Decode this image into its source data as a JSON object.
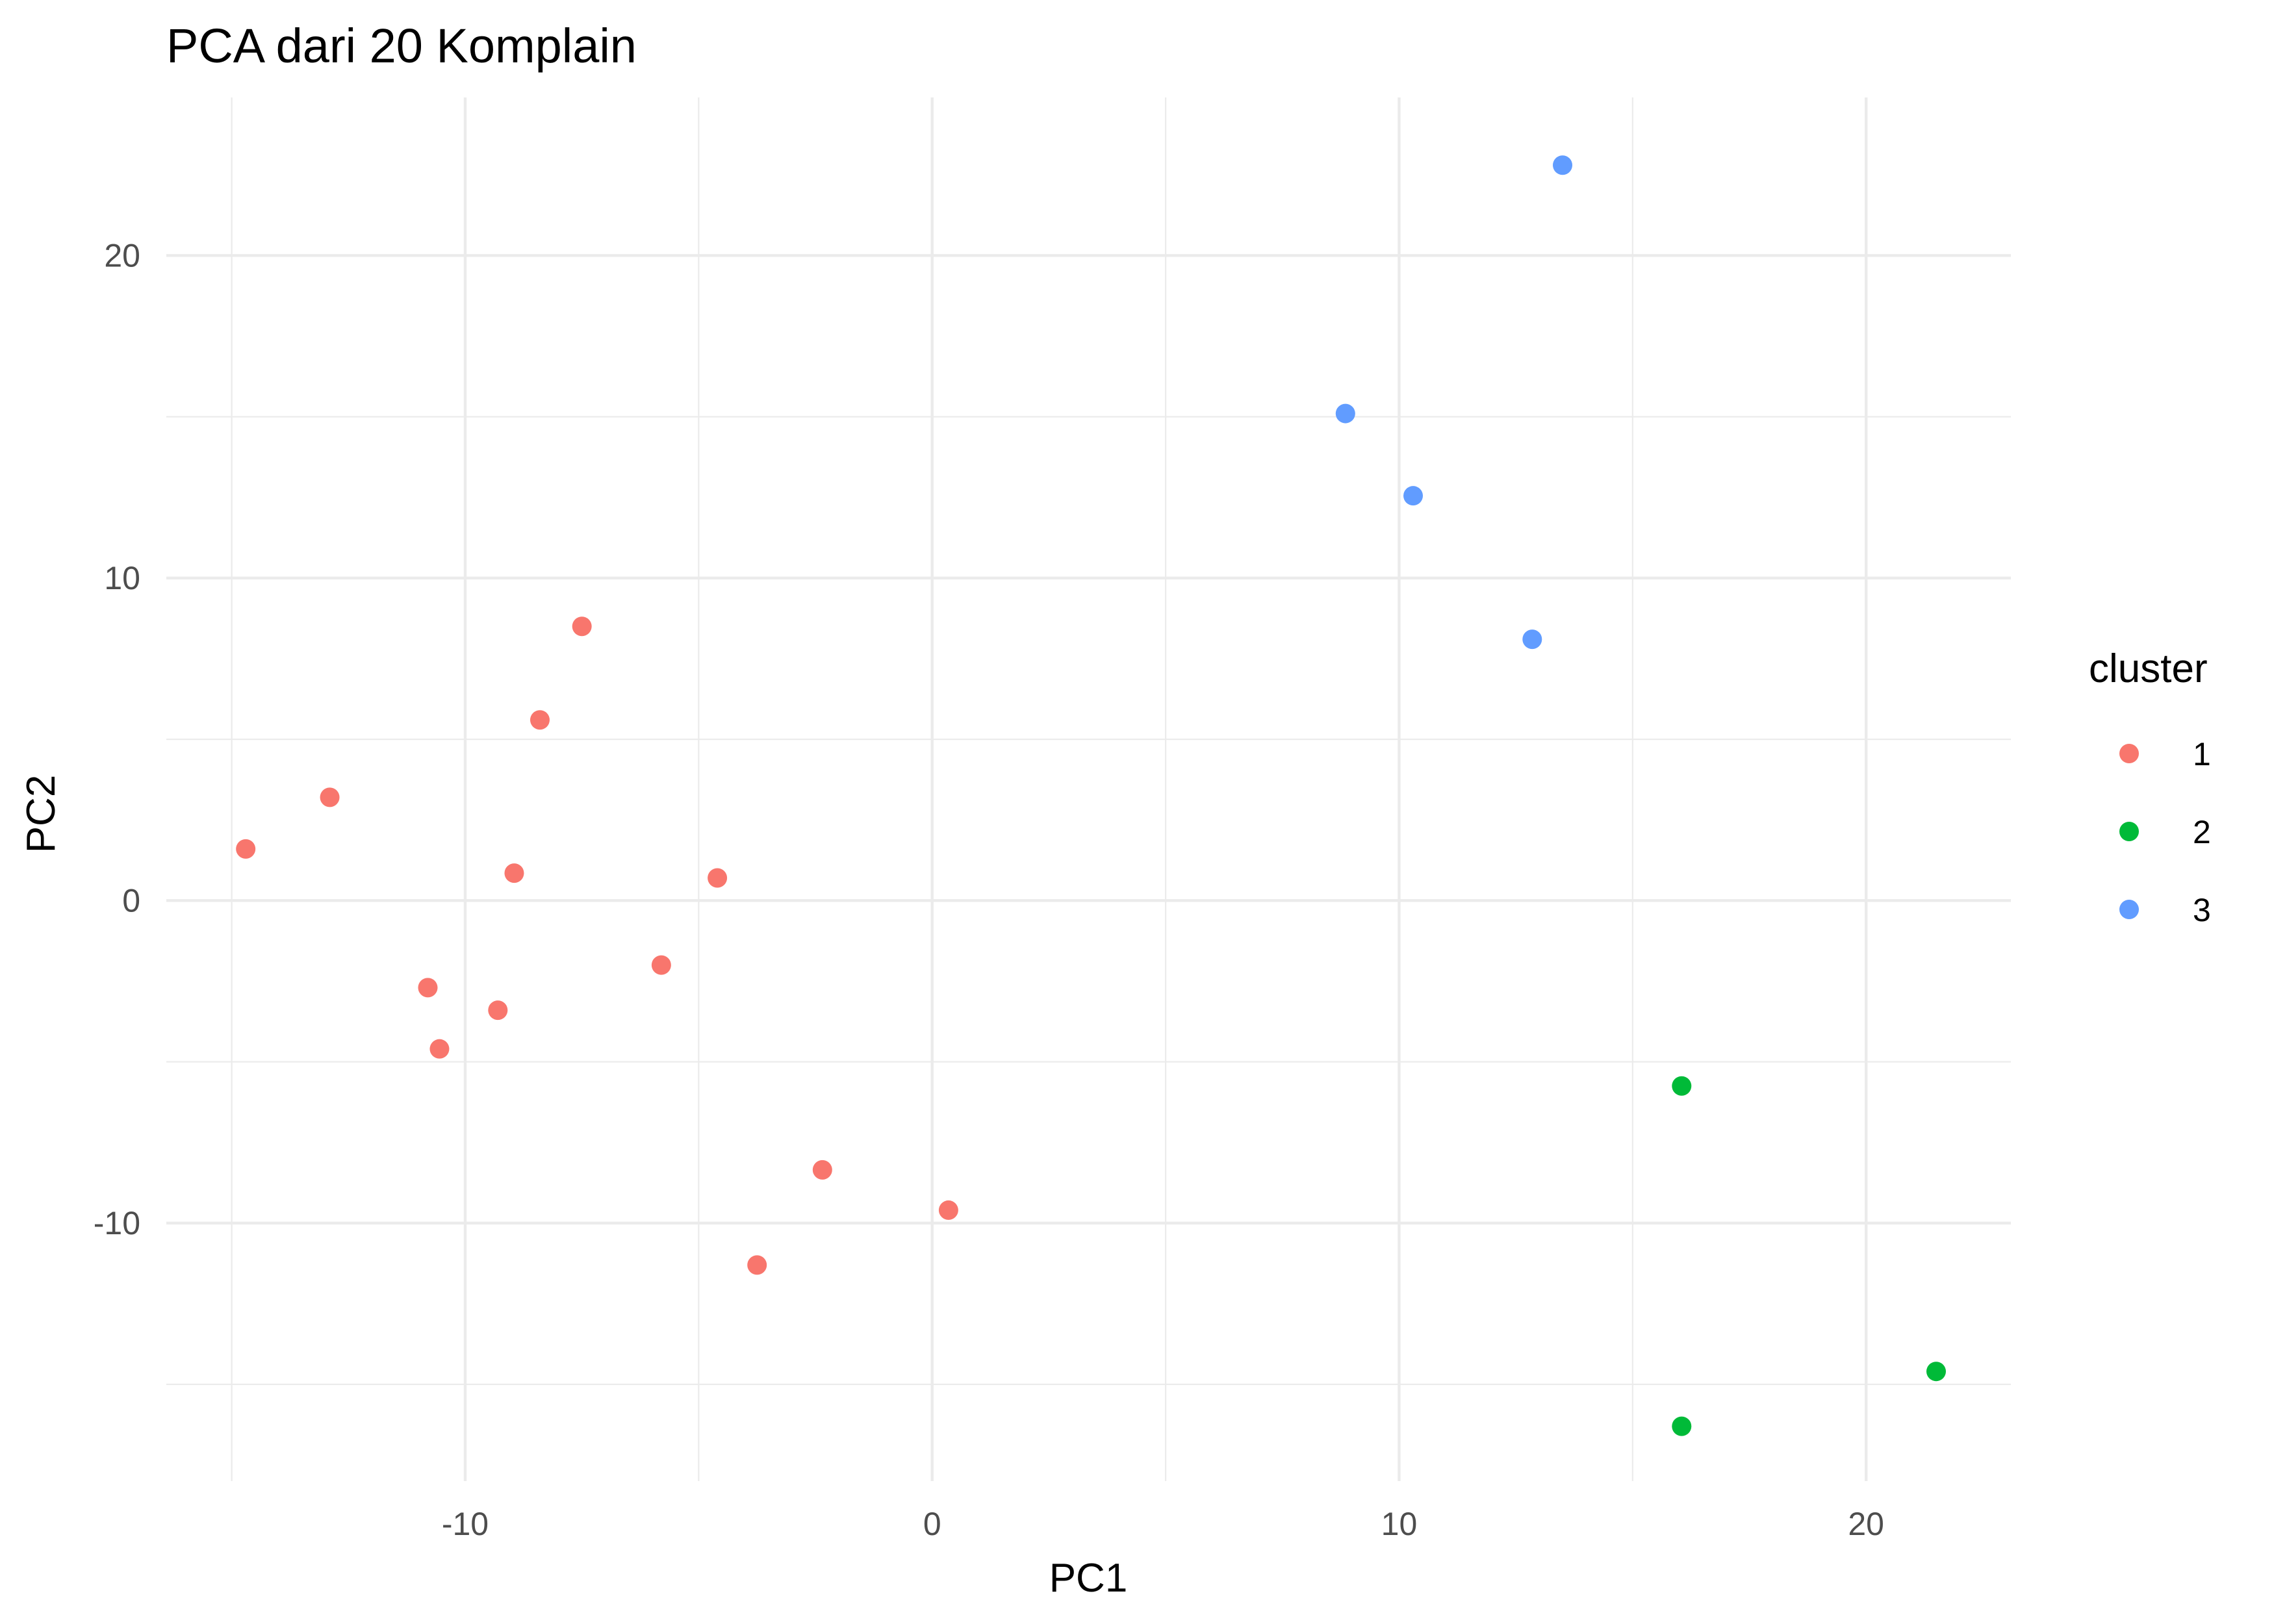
{
  "chart_data": {
    "type": "scatter",
    "title": "PCA dari 20 Komplain",
    "xlabel": "PC1",
    "ylabel": "PC2",
    "xlim": [
      -16.4,
      23.1
    ],
    "ylim": [
      -18.0,
      24.9
    ],
    "x_ticks": [
      -10,
      0,
      10,
      20
    ],
    "x_tick_labels": [
      "-10",
      "0",
      "10",
      "20"
    ],
    "x_minor": [
      -15,
      -5,
      5,
      15
    ],
    "y_ticks": [
      -10,
      0,
      10,
      20
    ],
    "y_tick_labels": [
      "-10",
      "0",
      "10",
      "20"
    ],
    "y_minor": [
      -15,
      -5,
      5,
      15
    ],
    "grid": true,
    "legend": {
      "title": "cluster",
      "position": "right",
      "entries": [
        {
          "label": "1",
          "color": "#F8766D"
        },
        {
          "label": "2",
          "color": "#00BA38"
        },
        {
          "label": "3",
          "color": "#619CFF"
        }
      ]
    },
    "series": [
      {
        "name": "1",
        "color": "#F8766D",
        "points": [
          {
            "x": -14.7,
            "y": 1.6
          },
          {
            "x": -12.9,
            "y": 3.2
          },
          {
            "x": -10.8,
            "y": -2.7
          },
          {
            "x": -10.55,
            "y": -4.6
          },
          {
            "x": -9.3,
            "y": -3.4
          },
          {
            "x": -8.95,
            "y": 0.85
          },
          {
            "x": -8.4,
            "y": 5.6
          },
          {
            "x": -7.5,
            "y": 8.5
          },
          {
            "x": -5.8,
            "y": -2.0
          },
          {
            "x": -4.6,
            "y": 0.7
          },
          {
            "x": -3.75,
            "y": -11.3
          },
          {
            "x": -2.35,
            "y": -8.35
          },
          {
            "x": 0.35,
            "y": -9.6
          }
        ]
      },
      {
        "name": "2",
        "color": "#00BA38",
        "points": [
          {
            "x": 16.05,
            "y": -5.75
          },
          {
            "x": 16.05,
            "y": -16.3
          },
          {
            "x": 21.5,
            "y": -14.6
          }
        ]
      },
      {
        "name": "3",
        "color": "#619CFF",
        "points": [
          {
            "x": 8.85,
            "y": 15.1
          },
          {
            "x": 10.3,
            "y": 12.55
          },
          {
            "x": 12.85,
            "y": 8.1
          },
          {
            "x": 13.5,
            "y": 22.8
          }
        ]
      }
    ]
  }
}
